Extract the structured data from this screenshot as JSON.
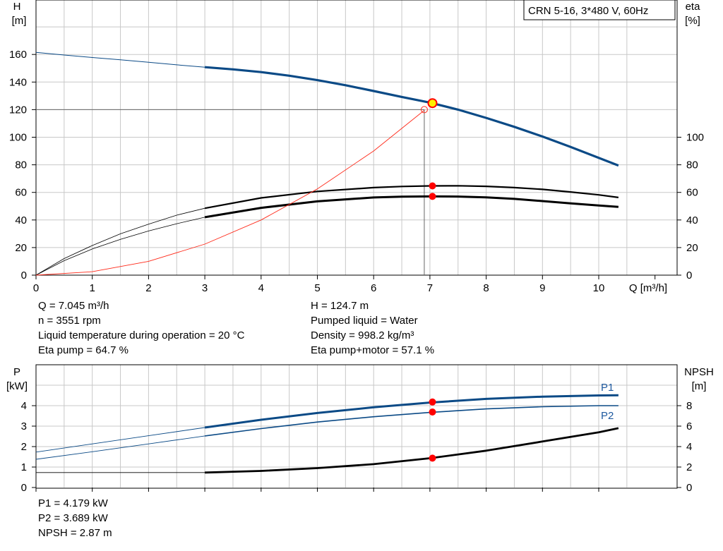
{
  "title_box": "CRN 5-16, 3*480 V, 60Hz",
  "colors": {
    "head_curve": "#0b4a86",
    "eta_curve": "#000000",
    "system_curve": "#ff2a1a",
    "marker": "#ff0000",
    "op_point": "#ffee00",
    "grid": "#c8c8c8",
    "label_blue": "#1f5aa0"
  },
  "chart_data": [
    {
      "type": "line",
      "id": "head_eta",
      "left_axis_label": [
        "H",
        "[m]"
      ],
      "right_axis_label": [
        "eta",
        "[%]"
      ],
      "xlabel": "Q [m³/h]",
      "xlim": [
        0,
        11
      ],
      "ylim": [
        0,
        180
      ],
      "x_ticks": [
        0,
        1,
        2,
        3,
        4,
        5,
        6,
        7,
        8,
        9,
        10
      ],
      "y_ticks_left": [
        0,
        20,
        40,
        60,
        80,
        100,
        120,
        140,
        160
      ],
      "y_ticks_right": [
        0,
        20,
        40,
        60,
        80,
        100
      ],
      "grid": true,
      "series": [
        {
          "key": "H",
          "style": "head",
          "thin_x": [
            0,
            0.5,
            1,
            1.5,
            2,
            2.5,
            3
          ],
          "thin_y": [
            161.5,
            159.6,
            157.8,
            156.1,
            154.3,
            152.5,
            150.8
          ],
          "x": [
            3,
            3.5,
            4,
            4.5,
            5,
            5.5,
            6,
            6.5,
            7,
            7.5,
            8,
            8.5,
            9,
            9.5,
            10,
            10.35
          ],
          "y": [
            150.8,
            149.2,
            147.2,
            144.6,
            141.4,
            137.7,
            133.5,
            129.2,
            125.1,
            120.0,
            114.0,
            107.5,
            100.5,
            93.0,
            85.0,
            79.5
          ]
        },
        {
          "key": "eta_pump",
          "style": "eta_thin",
          "thin_x": [
            0,
            0.5,
            1,
            1.5,
            2,
            2.5,
            3
          ],
          "thin_y": [
            0,
            12,
            21.5,
            30,
            37,
            43.5,
            48.5
          ],
          "x": [
            3,
            4,
            5,
            6,
            6.5,
            7,
            7.5,
            8,
            8.5,
            9,
            9.5,
            10,
            10.35
          ],
          "y": [
            48.5,
            56,
            60.7,
            63.5,
            64.3,
            64.7,
            64.8,
            64.4,
            63.5,
            62.2,
            60.3,
            58.2,
            56.3
          ]
        },
        {
          "key": "eta_total",
          "style": "eta_thick",
          "thin_x": [
            0,
            0.5,
            1,
            1.5,
            2,
            2.5,
            3
          ],
          "thin_y": [
            0,
            10.5,
            19,
            26,
            32,
            37.3,
            42
          ],
          "x": [
            3,
            4,
            5,
            6,
            6.5,
            7,
            7.5,
            8,
            8.5,
            9,
            9.5,
            10,
            10.35
          ],
          "y": [
            42,
            48.8,
            53.5,
            56.3,
            56.9,
            57.1,
            57.0,
            56.4,
            55.3,
            53.7,
            52.0,
            50.5,
            49.5
          ]
        },
        {
          "key": "system",
          "style": "system",
          "x": [
            0,
            1,
            2,
            3,
            4,
            5,
            6,
            6.9
          ],
          "y": [
            0,
            2.5,
            10,
            22.5,
            40,
            62.5,
            90,
            119.5
          ]
        }
      ],
      "operating_point": {
        "x": 7.045,
        "y": 124.7
      },
      "setpoint": {
        "x": 6.9,
        "y": 120
      },
      "eta_markers": [
        {
          "x": 7.045,
          "y": 64.7
        },
        {
          "x": 7.045,
          "y": 57.1
        }
      ]
    },
    {
      "type": "line",
      "id": "power_npsh",
      "left_axis_label": [
        "P",
        "[kW]"
      ],
      "right_axis_label": [
        "NPSH",
        "[m]"
      ],
      "xlim": [
        0,
        11
      ],
      "ylim": [
        0,
        5
      ],
      "y_ticks_left": [
        0,
        1,
        2,
        3,
        4
      ],
      "y_ticks_right": [
        0,
        2,
        4,
        6,
        8
      ],
      "grid": true,
      "series": [
        {
          "key": "P1",
          "name": "P1",
          "style": "p_thick",
          "thin_x": [
            0,
            1,
            2,
            3
          ],
          "thin_y": [
            1.73,
            2.13,
            2.53,
            2.93
          ],
          "x": [
            3,
            4,
            5,
            6,
            7,
            8,
            9,
            10,
            10.35
          ],
          "y": [
            2.93,
            3.31,
            3.64,
            3.92,
            4.15,
            4.33,
            4.44,
            4.5,
            4.51
          ]
        },
        {
          "key": "P2",
          "name": "P2",
          "style": "p_thin",
          "thin_x": [
            0,
            1,
            2,
            3
          ],
          "thin_y": [
            1.38,
            1.75,
            2.13,
            2.52
          ],
          "x": [
            3,
            4,
            5,
            6,
            7,
            8,
            9,
            10,
            10.35
          ],
          "y": [
            2.52,
            2.88,
            3.2,
            3.46,
            3.67,
            3.84,
            3.95,
            4.0,
            4.0
          ]
        },
        {
          "key": "NPSH",
          "style": "npsh",
          "thin_x": [
            0,
            3
          ],
          "thin_y": [
            1.46,
            1.46
          ],
          "x": [
            3,
            4,
            5,
            6,
            7,
            8,
            9,
            10,
            10.35
          ],
          "y": [
            1.46,
            1.62,
            1.9,
            2.28,
            2.86,
            3.6,
            4.5,
            5.4,
            5.8
          ]
        }
      ],
      "markers": [
        {
          "x": 7.045,
          "y": 4.179
        },
        {
          "x": 7.045,
          "y": 3.689
        },
        {
          "x": 7.045,
          "y": 1.435
        }
      ]
    }
  ],
  "info_upper_left": [
    "Q = 7.045 m³/h",
    "n = 3551 rpm",
    "Liquid temperature during operation = 20 °C",
    "Eta pump = 64.7 %"
  ],
  "info_upper_right": [
    "H = 124.7 m",
    "Pumped liquid = Water",
    "Density = 998.2 kg/m³",
    "Eta pump+motor = 57.1 %"
  ],
  "info_lower": [
    "P1 = 4.179 kW",
    "P2 = 3.689 kW",
    "NPSH = 2.87 m"
  ]
}
